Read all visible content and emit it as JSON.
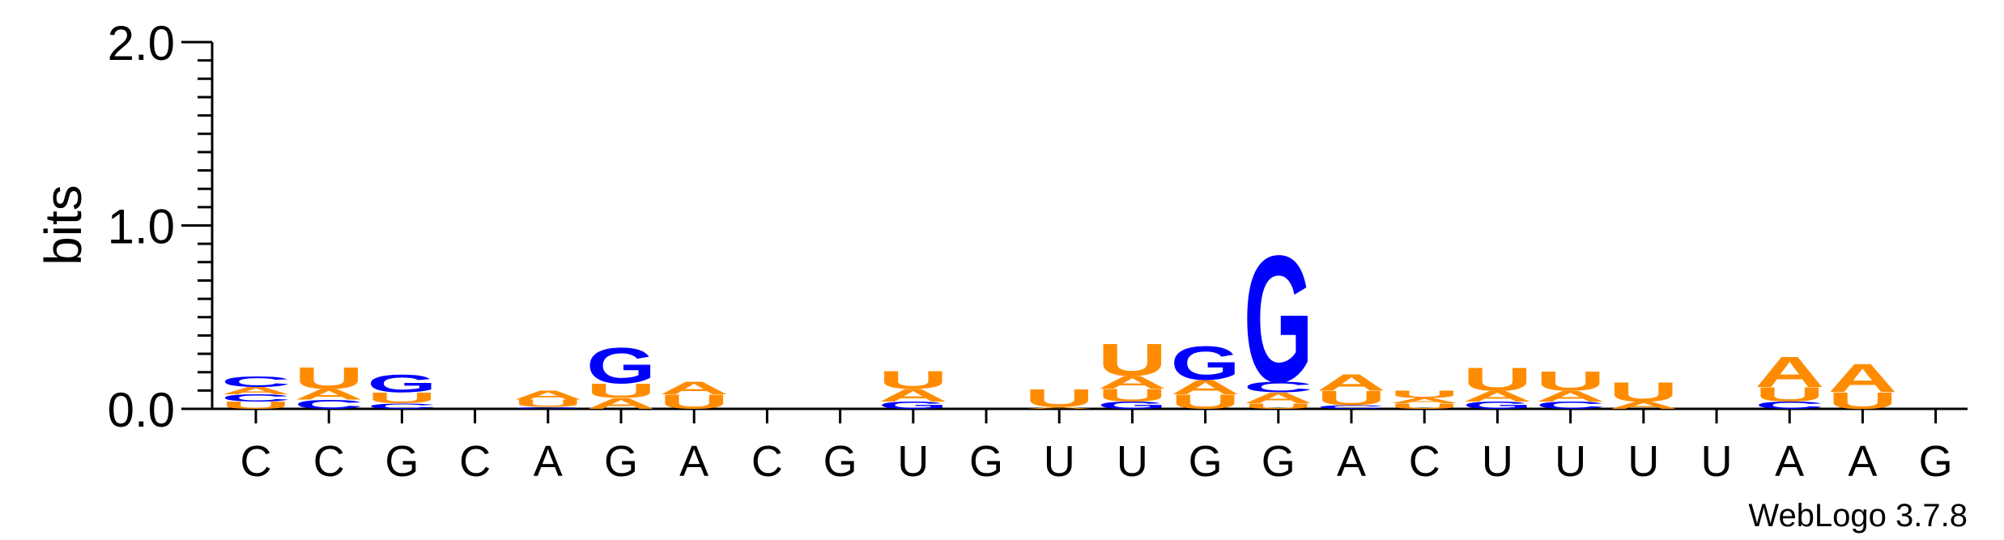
{
  "chart_data": {
    "type": "sequence-logo",
    "ylabel": "bits",
    "ylim": [
      0,
      2.0
    ],
    "y_ticks": [
      "0.0",
      "1.0",
      "2.0"
    ],
    "colors": {
      "A": "#ff8c00",
      "U": "#ff8c00",
      "C": "#0000ff",
      "G": "#0000ff"
    },
    "credit": "WebLogo 3.7.8",
    "positions": [
      {
        "label": "C",
        "stack": [
          [
            "U",
            0.04
          ],
          [
            "C",
            0.04
          ],
          [
            "A",
            0.04
          ],
          [
            "C",
            0.06
          ]
        ]
      },
      {
        "label": "C",
        "stack": [
          [
            "C",
            0.05
          ],
          [
            "A",
            0.06
          ],
          [
            "U",
            0.12
          ]
        ]
      },
      {
        "label": "G",
        "stack": [
          [
            "C",
            0.03
          ],
          [
            "U",
            0.06
          ],
          [
            "G",
            0.1
          ]
        ]
      },
      {
        "label": "C",
        "stack": []
      },
      {
        "label": "A",
        "stack": [
          [
            "G",
            0.01
          ],
          [
            "U",
            0.04
          ],
          [
            "A",
            0.05
          ]
        ]
      },
      {
        "label": "G",
        "stack": [
          [
            "A",
            0.06
          ],
          [
            "U",
            0.08
          ],
          [
            "G",
            0.2
          ]
        ]
      },
      {
        "label": "A",
        "stack": [
          [
            "U",
            0.08
          ],
          [
            "A",
            0.07
          ]
        ]
      },
      {
        "label": "C",
        "stack": []
      },
      {
        "label": "G",
        "stack": []
      },
      {
        "label": "U",
        "stack": [
          [
            "G",
            0.04
          ],
          [
            "A",
            0.07
          ],
          [
            "U",
            0.1
          ]
        ]
      },
      {
        "label": "G",
        "stack": []
      },
      {
        "label": "U",
        "stack": [
          [
            "A",
            0.01
          ],
          [
            "U",
            0.1
          ]
        ]
      },
      {
        "label": "U",
        "stack": [
          [
            "G",
            0.04
          ],
          [
            "U",
            0.07
          ],
          [
            "A",
            0.07
          ],
          [
            "U",
            0.18
          ]
        ]
      },
      {
        "label": "G",
        "stack": [
          [
            "U",
            0.08
          ],
          [
            "A",
            0.08
          ],
          [
            "G",
            0.19
          ]
        ]
      },
      {
        "label": "G",
        "stack": [
          [
            "U",
            0.03
          ],
          [
            "A",
            0.06
          ],
          [
            "C",
            0.06
          ],
          [
            "G",
            0.71
          ]
        ]
      },
      {
        "label": "A",
        "stack": [
          [
            "C",
            0.02
          ],
          [
            "U",
            0.08
          ],
          [
            "A",
            0.09
          ]
        ]
      },
      {
        "label": "C",
        "stack": [
          [
            "U",
            0.03
          ],
          [
            "A",
            0.03
          ],
          [
            "U",
            0.04
          ]
        ]
      },
      {
        "label": "U",
        "stack": [
          [
            "G",
            0.04
          ],
          [
            "A",
            0.06
          ],
          [
            "U",
            0.13
          ]
        ]
      },
      {
        "label": "U",
        "stack": [
          [
            "C",
            0.04
          ],
          [
            "A",
            0.06
          ],
          [
            "U",
            0.11
          ]
        ]
      },
      {
        "label": "U",
        "stack": [
          [
            "A",
            0.04
          ],
          [
            "U",
            0.11
          ]
        ]
      },
      {
        "label": "U",
        "stack": []
      },
      {
        "label": "A",
        "stack": [
          [
            "C",
            0.04
          ],
          [
            "U",
            0.08
          ],
          [
            "A",
            0.17
          ]
        ]
      },
      {
        "label": "A",
        "stack": [
          [
            "U",
            0.09
          ],
          [
            "A",
            0.16
          ]
        ]
      },
      {
        "label": "G",
        "stack": []
      }
    ]
  }
}
